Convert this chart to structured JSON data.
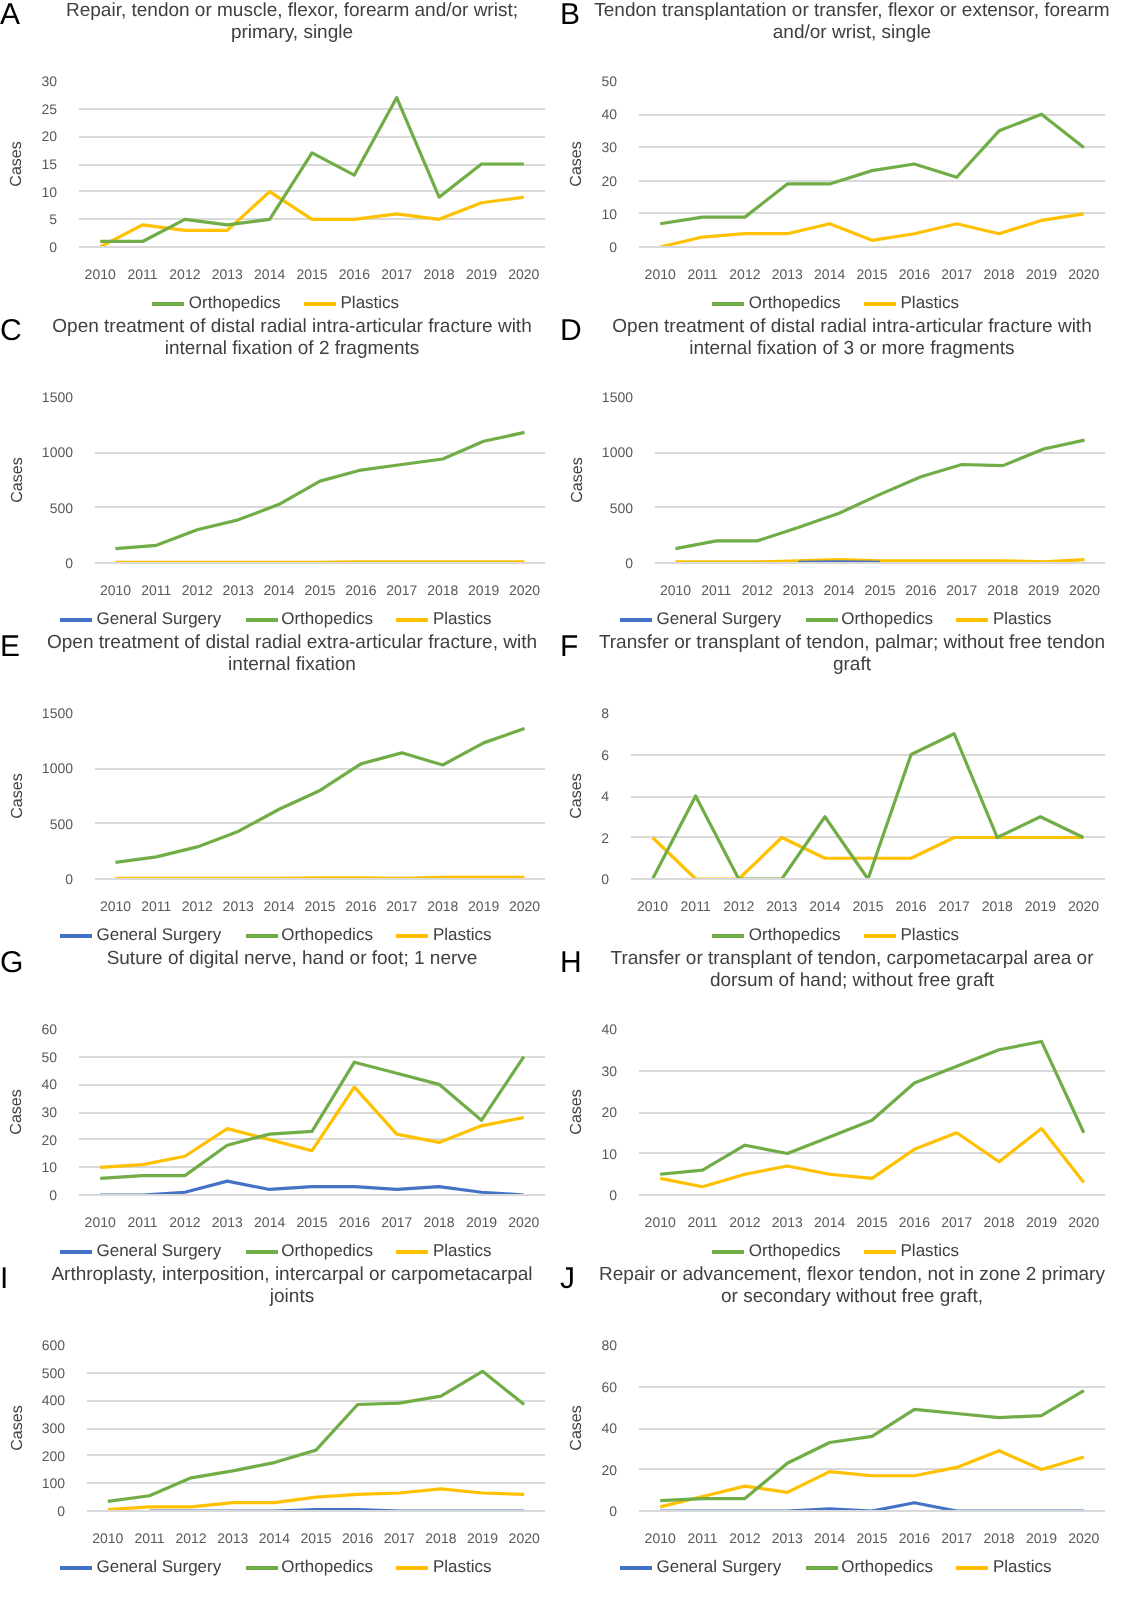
{
  "chart_data": [
    {
      "type": "line",
      "title": "Repair, tendon or muscle, flexor, forearm and/or wrist; primary, single",
      "annotations": [
        "A"
      ],
      "ylabel": "Cases",
      "categories": [
        "2010",
        "2011",
        "2012",
        "2013",
        "2014",
        "2015",
        "2016",
        "2017",
        "2018",
        "2019",
        "2020"
      ],
      "ylim": [
        0,
        30
      ],
      "yticks": [
        0,
        5,
        10,
        15,
        20,
        25,
        30
      ],
      "grid": "y",
      "legend": "bottom",
      "series": [
        {
          "name": "Orthopedics",
          "color": "#70ad47",
          "values": [
            1,
            1,
            5,
            4,
            5,
            17,
            13,
            27,
            9,
            15,
            15
          ]
        },
        {
          "name": "Plastics",
          "color": "#ffc000",
          "values": [
            0,
            4,
            3,
            3,
            10,
            5,
            5,
            6,
            5,
            8,
            9
          ]
        }
      ]
    },
    {
      "type": "line",
      "title": "Tendon transplantation or transfer, flexor or extensor, forearm and/or wrist, single",
      "annotations": [
        "B"
      ],
      "ylabel": "Cases",
      "categories": [
        "2010",
        "2011",
        "2012",
        "2013",
        "2014",
        "2015",
        "2016",
        "2017",
        "2018",
        "2019",
        "2020"
      ],
      "ylim": [
        0,
        50
      ],
      "yticks": [
        0,
        10,
        20,
        30,
        40,
        50
      ],
      "grid": "y",
      "legend": "bottom",
      "series": [
        {
          "name": "Orthopedics",
          "color": "#70ad47",
          "values": [
            7,
            9,
            9,
            19,
            19,
            23,
            25,
            21,
            35,
            40,
            30
          ]
        },
        {
          "name": "Plastics",
          "color": "#ffc000",
          "values": [
            0,
            3,
            4,
            4,
            7,
            2,
            4,
            7,
            4,
            8,
            10
          ]
        }
      ]
    },
    {
      "type": "line",
      "title": "Open treatment of distal radial intra-articular fracture with internal fixation of 2 fragments",
      "annotations": [
        "C"
      ],
      "ylabel": "Cases",
      "categories": [
        "2010",
        "2011",
        "2012",
        "2013",
        "2014",
        "2015",
        "2016",
        "2017",
        "2018",
        "2019",
        "2020"
      ],
      "ylim": [
        0,
        1500
      ],
      "yticks": [
        0,
        500,
        1000,
        1500
      ],
      "grid": "y",
      "legend": "bottom",
      "series": [
        {
          "name": "General Surgery",
          "color": "#4472c4",
          "values": [
            null,
            null,
            null,
            null,
            null,
            null,
            null,
            null,
            null,
            null,
            null
          ]
        },
        {
          "name": "Orthopedics",
          "color": "#70ad47",
          "values": [
            130,
            160,
            300,
            390,
            530,
            740,
            840,
            890,
            940,
            1100,
            1180
          ]
        },
        {
          "name": "Plastics",
          "color": "#ffc000",
          "values": [
            5,
            5,
            5,
            5,
            5,
            5,
            10,
            10,
            10,
            10,
            10
          ]
        }
      ]
    },
    {
      "type": "line",
      "title": "Open treatment of distal radial intra-articular fracture with internal fixation of 3 or more fragments",
      "annotations": [
        "D"
      ],
      "ylabel": "Cases",
      "categories": [
        "2010",
        "2011",
        "2012",
        "2013",
        "2014",
        "2015",
        "2016",
        "2017",
        "2018",
        "2019",
        "2020"
      ],
      "ylim": [
        0,
        1500
      ],
      "yticks": [
        0,
        500,
        1000,
        1500
      ],
      "grid": "y",
      "legend": "bottom",
      "series": [
        {
          "name": "General Surgery",
          "color": "#4472c4",
          "values": [
            null,
            null,
            null,
            5,
            10,
            5,
            null,
            null,
            null,
            null,
            null
          ]
        },
        {
          "name": "Orthopedics",
          "color": "#70ad47",
          "values": [
            130,
            200,
            200,
            320,
            450,
            620,
            780,
            890,
            880,
            1030,
            1110
          ]
        },
        {
          "name": "Plastics",
          "color": "#ffc000",
          "values": [
            10,
            10,
            10,
            20,
            30,
            20,
            20,
            20,
            20,
            10,
            30
          ]
        }
      ]
    },
    {
      "type": "line",
      "title": "Open treatment of distal radial extra-articular fracture, with internal fixation",
      "annotations": [
        "E"
      ],
      "ylabel": "Cases",
      "categories": [
        "2010",
        "2011",
        "2012",
        "2013",
        "2014",
        "2015",
        "2016",
        "2017",
        "2018",
        "2019",
        "2020"
      ],
      "ylim": [
        0,
        1500
      ],
      "yticks": [
        0,
        500,
        1000,
        1500
      ],
      "grid": "y",
      "legend": "bottom",
      "series": [
        {
          "name": "General Surgery",
          "color": "#4472c4",
          "values": [
            null,
            null,
            null,
            null,
            null,
            null,
            null,
            null,
            null,
            null,
            null
          ]
        },
        {
          "name": "Orthopedics",
          "color": "#70ad47",
          "values": [
            150,
            200,
            290,
            430,
            630,
            800,
            1040,
            1140,
            1030,
            1230,
            1360
          ]
        },
        {
          "name": "Plastics",
          "color": "#ffc000",
          "values": [
            5,
            5,
            5,
            5,
            5,
            10,
            10,
            5,
            15,
            15,
            15
          ]
        }
      ]
    },
    {
      "type": "line",
      "title": "Transfer or transplant of tendon, palmar; without free tendon graft",
      "annotations": [
        "F"
      ],
      "ylabel": "Cases",
      "categories": [
        "2010",
        "2011",
        "2012",
        "2013",
        "2014",
        "2015",
        "2016",
        "2017",
        "2018",
        "2019",
        "2020"
      ],
      "ylim": [
        0,
        8
      ],
      "yticks": [
        0,
        2,
        4,
        6,
        8
      ],
      "grid": "y",
      "legend": "bottom",
      "series": [
        {
          "name": "Orthopedics",
          "color": "#70ad47",
          "values": [
            0,
            4,
            0,
            0,
            3,
            0,
            6,
            7,
            2,
            3,
            2
          ]
        },
        {
          "name": "Plastics",
          "color": "#ffc000",
          "values": [
            2,
            0,
            0,
            2,
            1,
            1,
            1,
            2,
            2,
            2,
            2
          ]
        }
      ]
    },
    {
      "type": "line",
      "title": "Suture of digital nerve, hand or foot; 1 nerve",
      "annotations": [
        "G"
      ],
      "ylabel": "Cases",
      "categories": [
        "2010",
        "2011",
        "2012",
        "2013",
        "2014",
        "2015",
        "2016",
        "2017",
        "2018",
        "2019",
        "2020"
      ],
      "ylim": [
        0,
        60
      ],
      "yticks": [
        0,
        10,
        20,
        30,
        40,
        50,
        60
      ],
      "grid": "y",
      "legend": "bottom",
      "series": [
        {
          "name": "General Surgery",
          "color": "#4472c4",
          "values": [
            0,
            0,
            1,
            5,
            2,
            3,
            3,
            2,
            3,
            1,
            0
          ]
        },
        {
          "name": "Orthopedics",
          "color": "#70ad47",
          "values": [
            6,
            7,
            7,
            18,
            22,
            23,
            48,
            44,
            40,
            27,
            50
          ]
        },
        {
          "name": "Plastics",
          "color": "#ffc000",
          "values": [
            10,
            11,
            14,
            24,
            20,
            16,
            39,
            22,
            19,
            25,
            28
          ]
        }
      ]
    },
    {
      "type": "line",
      "title": "Transfer or transplant of tendon, carpometacarpal area or dorsum of hand; without free graft",
      "annotations": [
        "H"
      ],
      "ylabel": "Cases",
      "categories": [
        "2010",
        "2011",
        "2012",
        "2013",
        "2014",
        "2015",
        "2016",
        "2017",
        "2018",
        "2019",
        "2020"
      ],
      "ylim": [
        0,
        40
      ],
      "yticks": [
        0,
        10,
        20,
        30,
        40
      ],
      "grid": "y",
      "legend": "bottom",
      "series": [
        {
          "name": "Orthopedics",
          "color": "#70ad47",
          "values": [
            5,
            6,
            12,
            10,
            14,
            18,
            27,
            31,
            35,
            37,
            15
          ]
        },
        {
          "name": "Plastics",
          "color": "#ffc000",
          "values": [
            4,
            2,
            5,
            7,
            5,
            4,
            11,
            15,
            8,
            16,
            3
          ]
        }
      ]
    },
    {
      "type": "line",
      "title": "Arthroplasty, interposition, intercarpal or carpometacarpal joints",
      "annotations": [
        "I"
      ],
      "ylabel": "Cases",
      "categories": [
        "2010",
        "2011",
        "2012",
        "2013",
        "2014",
        "2015",
        "2016",
        "2017",
        "2018",
        "2019",
        "2020"
      ],
      "ylim": [
        0,
        600
      ],
      "yticks": [
        0,
        100,
        200,
        300,
        400,
        500,
        600
      ],
      "grid": "y",
      "legend": "bottom",
      "series": [
        {
          "name": "General Surgery",
          "color": "#4472c4",
          "values": [
            null,
            0,
            0,
            0,
            0,
            5,
            5,
            0,
            0,
            0,
            0
          ]
        },
        {
          "name": "Orthopedics",
          "color": "#70ad47",
          "values": [
            35,
            55,
            120,
            145,
            175,
            220,
            385,
            390,
            415,
            505,
            385
          ]
        },
        {
          "name": "Plastics",
          "color": "#ffc000",
          "values": [
            5,
            15,
            15,
            30,
            30,
            50,
            60,
            65,
            80,
            65,
            60
          ]
        }
      ]
    },
    {
      "type": "line",
      "title": "Repair or advancement, flexor tendon, not in zone 2 primary or secondary without free graft,",
      "annotations": [
        "J"
      ],
      "ylabel": "Cases",
      "categories": [
        "2010",
        "2011",
        "2012",
        "2013",
        "2014",
        "2015",
        "2016",
        "2017",
        "2018",
        "2019",
        "2020"
      ],
      "ylim": [
        0,
        80
      ],
      "yticks": [
        0,
        20,
        40,
        60,
        80
      ],
      "grid": "y",
      "legend": "bottom",
      "series": [
        {
          "name": "General Surgery",
          "color": "#4472c4",
          "values": [
            0,
            0,
            0,
            0,
            1,
            0,
            4,
            0,
            0,
            0,
            0
          ]
        },
        {
          "name": "Orthopedics",
          "color": "#70ad47",
          "values": [
            5,
            6,
            6,
            23,
            33,
            36,
            49,
            47,
            45,
            46,
            58
          ]
        },
        {
          "name": "Plastics",
          "color": "#ffc000",
          "values": [
            2,
            7,
            12,
            9,
            19,
            17,
            17,
            21,
            29,
            20,
            26
          ]
        }
      ]
    }
  ]
}
